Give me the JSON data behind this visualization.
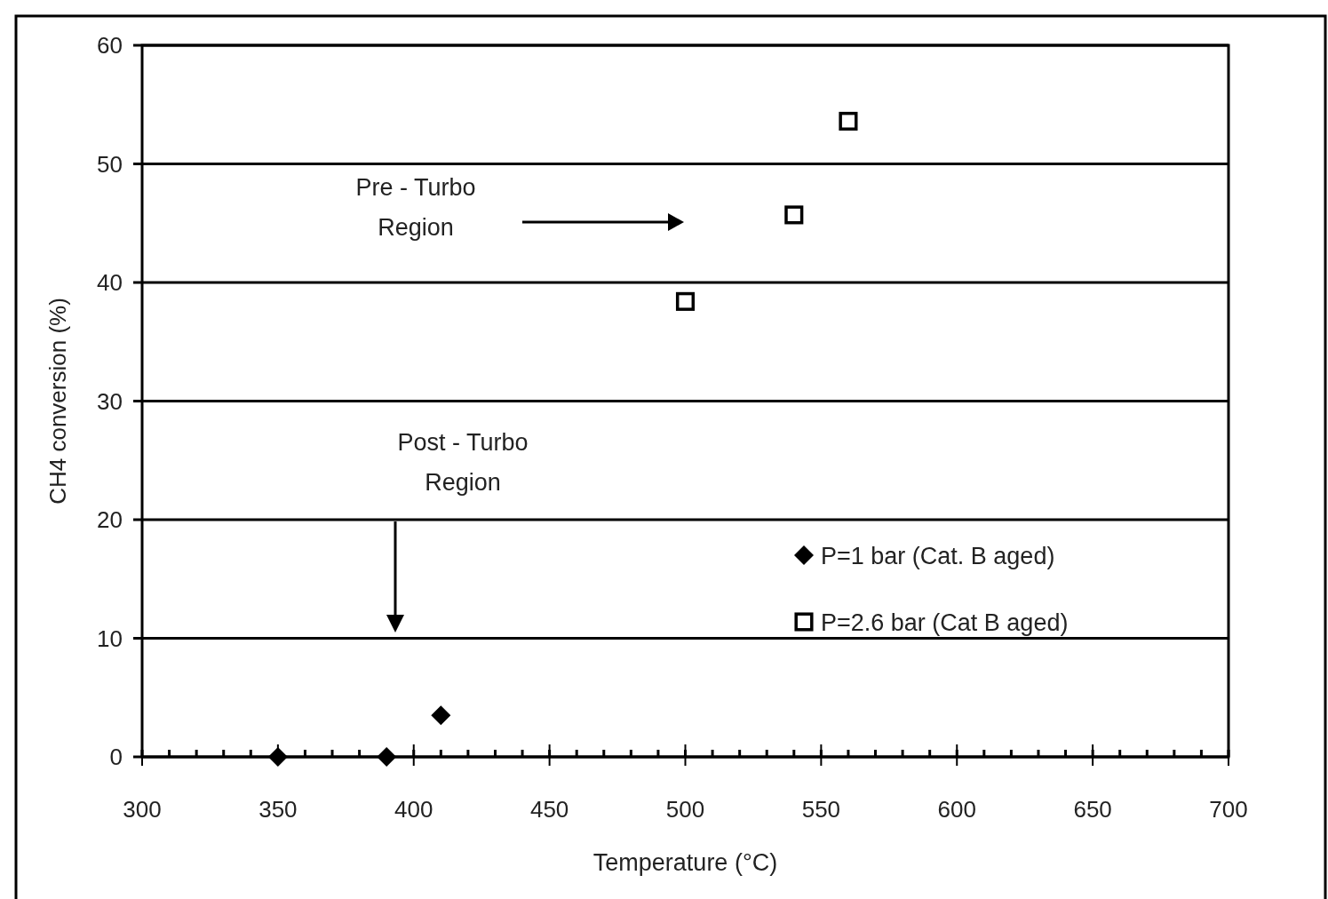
{
  "chart_data": {
    "type": "scatter",
    "xlabel": "Temperature (°C)",
    "ylabel": "CH4 conversion (%)",
    "xlim": [
      300,
      700
    ],
    "xticks": [
      300,
      350,
      400,
      450,
      500,
      550,
      600,
      650,
      700
    ],
    "ylim": [
      0,
      60
    ],
    "yticks": [
      0,
      10,
      20,
      30,
      40,
      50,
      60
    ],
    "grid": "y",
    "legend": "right",
    "series": [
      {
        "name": "P=1 bar (Cat. B aged)",
        "color": "#000000",
        "marker": "diamond",
        "x": [
          350,
          390,
          410
        ],
        "values": [
          0,
          0,
          3.5
        ]
      },
      {
        "name": "P=2.6 bar (Cat B aged)",
        "color": "#000000",
        "marker": "square",
        "x": [
          500,
          540,
          560
        ],
        "values": [
          38.4,
          45.7,
          53.6
        ]
      }
    ],
    "annotations": [
      "Pre - Turbo Region",
      "Post - Turbo Region"
    ]
  }
}
